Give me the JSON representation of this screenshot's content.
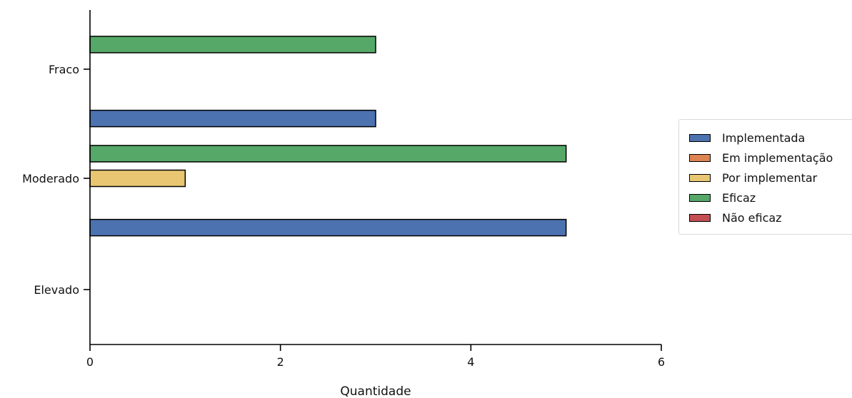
{
  "chart_data": {
    "type": "bar",
    "orientation": "horizontal",
    "categories": [
      "Elevado",
      "Moderado",
      "Fraco"
    ],
    "series": [
      {
        "name": "Implementada",
        "values": [
          0,
          5,
          3
        ],
        "color": "#4c72b0"
      },
      {
        "name": "Em implementação",
        "values": [
          0,
          0,
          0
        ],
        "color": "#dd8452"
      },
      {
        "name": "Por implementar",
        "values": [
          0,
          1,
          0
        ],
        "color": "#e8c672"
      },
      {
        "name": "Eficaz",
        "values": [
          0,
          5,
          3
        ],
        "color": "#55a868"
      },
      {
        "name": "Não eficaz",
        "values": [
          0,
          0,
          0
        ],
        "color": "#c44e52"
      }
    ],
    "title": "",
    "xlabel": "Quantidade",
    "ylabel": "",
    "xlim": [
      0,
      6
    ],
    "xticks": [
      0,
      2,
      4,
      6
    ],
    "grid": false,
    "legend_position": "right"
  }
}
